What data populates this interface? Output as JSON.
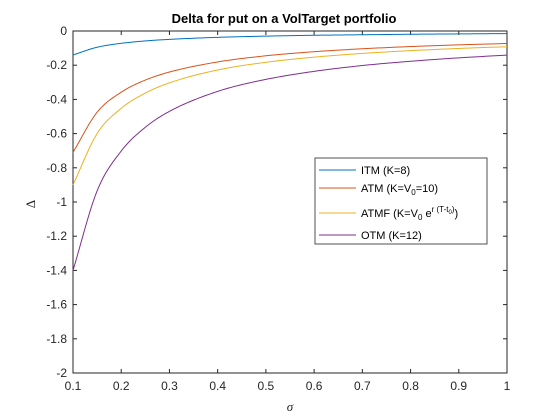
{
  "chart_data": {
    "type": "line",
    "title": "Delta for put on a VolTarget portfolio",
    "xlabel": "σ",
    "ylabel": "Δ",
    "xlim": [
      0.1,
      1
    ],
    "ylim": [
      -2,
      0
    ],
    "x_ticks": [
      "0.1",
      "0.2",
      "0.3",
      "0.4",
      "0.5",
      "0.6",
      "0.7",
      "0.8",
      "0.9",
      "1"
    ],
    "y_ticks": [
      "0",
      "-0.2",
      "-0.4",
      "-0.6",
      "-0.8",
      "-1",
      "-1.2",
      "-1.4",
      "-1.6",
      "-1.8",
      "-2"
    ],
    "grid": false,
    "legend_position": "right",
    "x": [
      0.1,
      0.15,
      0.2,
      0.25,
      0.3,
      0.4,
      0.5,
      0.6,
      0.7,
      0.8,
      0.9,
      1.0
    ],
    "series": [
      {
        "name": "ITM (K=8)",
        "color": "#0072BD",
        "values": [
          -0.14,
          -0.095,
          -0.072,
          -0.058,
          -0.049,
          -0.037,
          -0.03,
          -0.025,
          -0.022,
          -0.019,
          -0.017,
          -0.015
        ]
      },
      {
        "name": "ATM (K=V0=10)",
        "color": "#D95319",
        "values": [
          -0.71,
          -0.475,
          -0.358,
          -0.287,
          -0.24,
          -0.181,
          -0.145,
          -0.121,
          -0.104,
          -0.091,
          -0.081,
          -0.073
        ]
      },
      {
        "name": "ATMF (K=V0 e^r(T-t0))",
        "color": "#EDB120",
        "values": [
          -0.9,
          -0.6,
          -0.452,
          -0.363,
          -0.303,
          -0.228,
          -0.183,
          -0.153,
          -0.131,
          -0.115,
          -0.102,
          -0.092
        ]
      },
      {
        "name": "OTM (K=12)",
        "color": "#7E2F8E",
        "values": [
          -1.4,
          -0.935,
          -0.702,
          -0.563,
          -0.47,
          -0.353,
          -0.283,
          -0.236,
          -0.202,
          -0.177,
          -0.157,
          -0.141
        ]
      }
    ]
  },
  "legend": {
    "itm": "ITM (K=8)",
    "atm_prefix": "ATM (K=V",
    "atm_sub": "0",
    "atm_suffix": "=10)",
    "atmf_prefix": "ATMF (K=V",
    "atmf_sub": "0",
    "atmf_mid": " e",
    "atmf_sup_prefix": "r (T-t",
    "atmf_sup_sub": "0",
    "atmf_sup_suffix": ")",
    "atmf_suffix": ")",
    "otm": "OTM (K=12)"
  }
}
